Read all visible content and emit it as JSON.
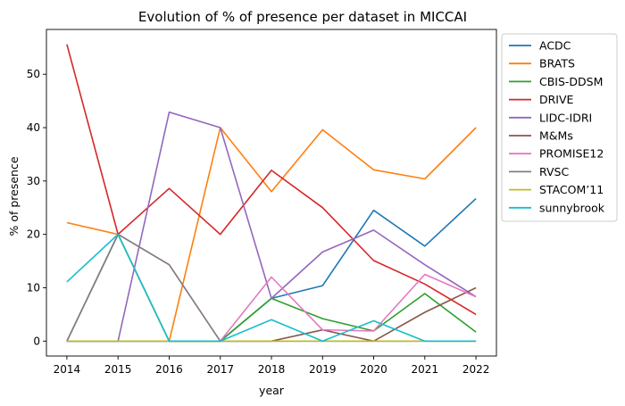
{
  "chart_data": {
    "type": "line",
    "title": "Evolution of % of presence per dataset in MICCAI",
    "xlabel": "year",
    "ylabel": "% of presence",
    "x": [
      2014,
      2015,
      2016,
      2017,
      2018,
      2019,
      2020,
      2021,
      2022
    ],
    "xlim": [
      2013.6,
      2022.4
    ],
    "ylim": [
      -2.8,
      58.4
    ],
    "yticks": [
      0,
      10,
      20,
      30,
      40,
      50
    ],
    "grid": false,
    "legend_position": "outside-right",
    "series": [
      {
        "name": "ACDC",
        "color": "#1f77b4",
        "values": [
          0,
          0,
          0,
          0,
          8.0,
          10.4,
          24.5,
          17.8,
          26.7
        ]
      },
      {
        "name": "BRATS",
        "color": "#ff7f0e",
        "values": [
          22.2,
          20.0,
          0,
          40.0,
          28.0,
          39.6,
          32.1,
          30.4,
          40.0
        ]
      },
      {
        "name": "CBIS-DDSM",
        "color": "#2ca02c",
        "values": [
          0,
          20.0,
          0,
          0,
          8.0,
          4.2,
          1.9,
          8.9,
          1.7
        ]
      },
      {
        "name": "DRIVE",
        "color": "#d62728",
        "values": [
          55.6,
          20.0,
          28.6,
          20.0,
          32.0,
          25.0,
          15.1,
          10.7,
          5.0
        ]
      },
      {
        "name": "LIDC-IDRI",
        "color": "#9467bd",
        "values": [
          0,
          0,
          42.9,
          40.0,
          8.0,
          16.7,
          20.8,
          14.3,
          8.3
        ]
      },
      {
        "name": "M&Ms",
        "color": "#8c564b",
        "values": [
          0,
          0,
          0,
          0,
          0,
          2.1,
          0,
          5.4,
          10.0
        ]
      },
      {
        "name": "PROMISE12",
        "color": "#e377c2",
        "values": [
          0,
          20.0,
          14.3,
          0,
          12.0,
          2.1,
          1.9,
          12.5,
          8.3
        ]
      },
      {
        "name": "RVSC",
        "color": "#7f7f7f",
        "values": [
          0,
          20.0,
          14.3,
          0,
          0,
          0,
          0,
          0,
          0
        ]
      },
      {
        "name": "STACOM’11",
        "color": "#bcbd22",
        "values": [
          0,
          0,
          0,
          0,
          0,
          0,
          0,
          0,
          0
        ]
      },
      {
        "name": "sunnybrook",
        "color": "#17becf",
        "values": [
          11.1,
          20.0,
          0,
          0,
          4.0,
          0,
          3.8,
          0,
          0
        ]
      }
    ]
  }
}
